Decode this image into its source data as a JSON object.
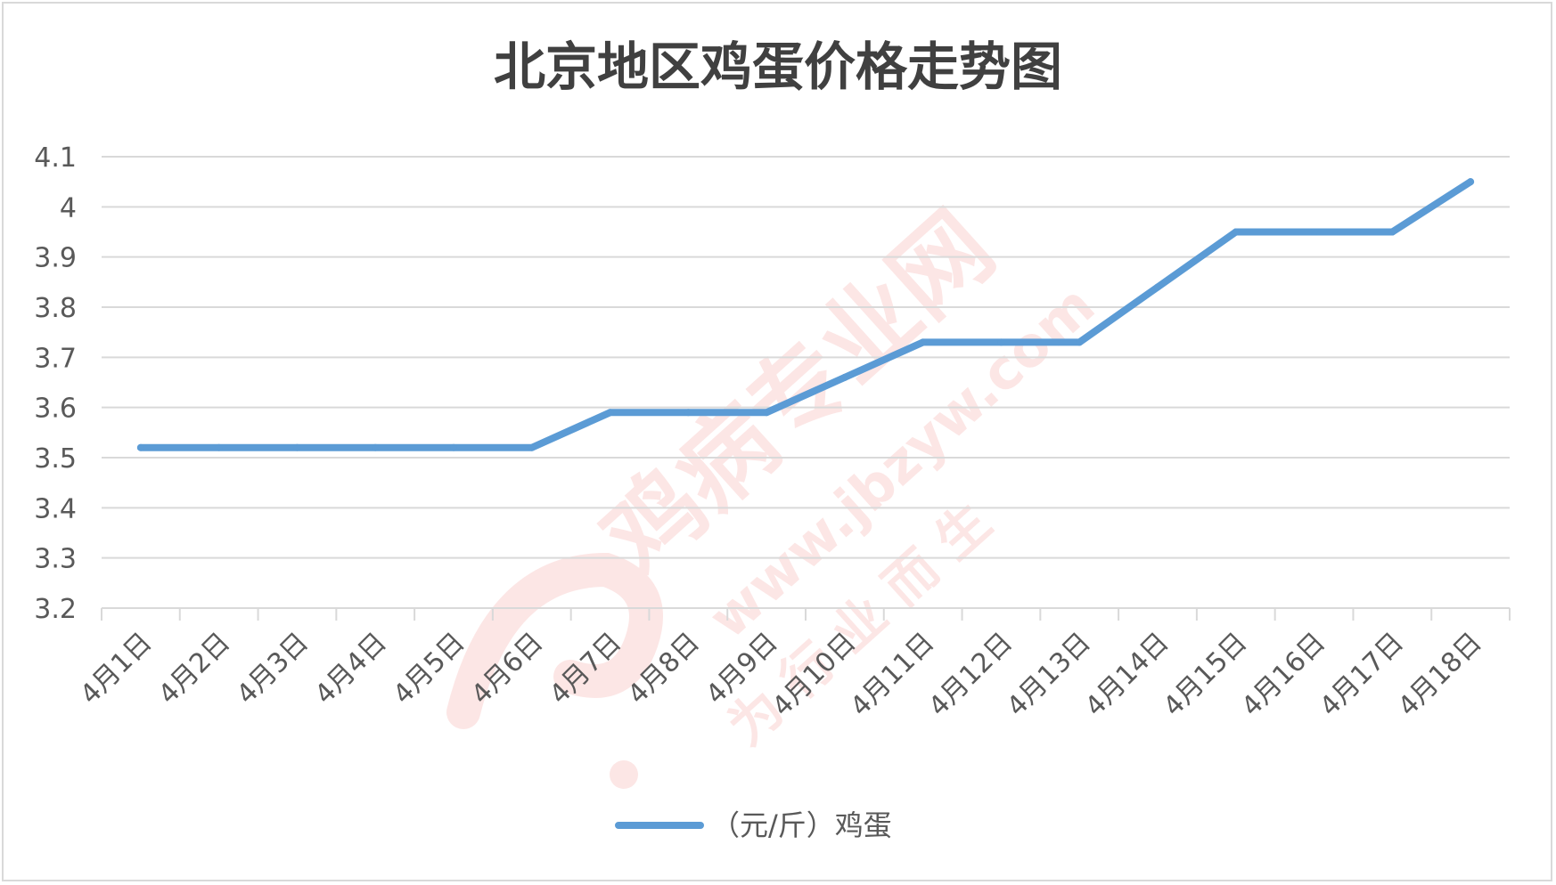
{
  "chart_data": {
    "type": "line",
    "title": "北京地区鸡蛋价格走势图",
    "categories": [
      "4月1日",
      "4月2日",
      "4月3日",
      "4月4日",
      "4月5日",
      "4月6日",
      "4月7日",
      "4月8日",
      "4月9日",
      "4月10日",
      "4月11日",
      "4月12日",
      "4月13日",
      "4月14日",
      "4月15日",
      "4月16日",
      "4月17日",
      "4月18日"
    ],
    "series": [
      {
        "name": "（元/斤）鸡蛋",
        "values": [
          3.52,
          3.52,
          3.52,
          3.52,
          3.52,
          3.52,
          3.59,
          3.59,
          3.59,
          3.66,
          3.73,
          3.73,
          3.73,
          3.84,
          3.95,
          3.95,
          3.95,
          4.05
        ],
        "color": "#5b9bd5"
      }
    ],
    "ylim": [
      3.2,
      4.1
    ],
    "yticks": [
      "3.2",
      "3.3",
      "3.4",
      "3.5",
      "3.6",
      "3.7",
      "3.8",
      "3.9",
      "4",
      "4.1"
    ],
    "xlabel": "",
    "ylabel": "",
    "grid": true,
    "legend": "bottom"
  },
  "watermark": {
    "site_name": "鸡病专业网",
    "site_url": "www.jbzyw.com",
    "slogan": "为 行 业 而 生",
    "color": "#e8423a"
  }
}
